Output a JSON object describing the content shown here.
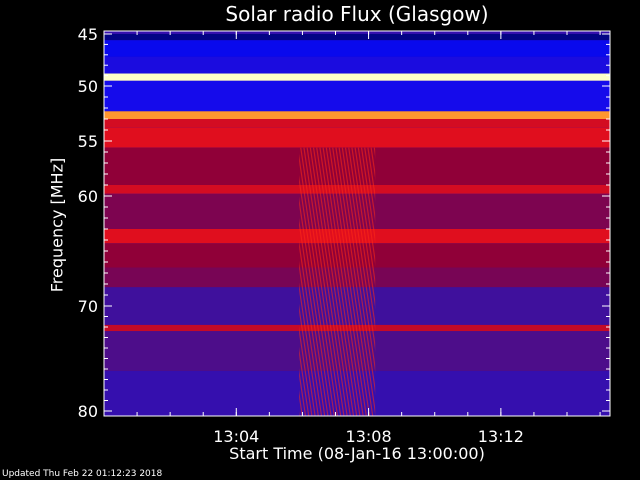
{
  "chart_data": {
    "type": "heatmap",
    "title": "Solar radio Flux (Glasgow)",
    "xlabel": "Start Time (08-Jan-16 13:00:00)",
    "ylabel": "Frequency [MHz]",
    "x_range_minutes": [
      0,
      15.3
    ],
    "y_range": [
      45,
      80
    ],
    "x_ticks": [
      {
        "label": "13:04",
        "minute": 4
      },
      {
        "label": "13:08",
        "minute": 8
      },
      {
        "label": "13:12",
        "minute": 12
      }
    ],
    "y_ticks": [
      {
        "label": "45",
        "value": 45
      },
      {
        "label": "50",
        "value": 50
      },
      {
        "label": "55",
        "value": 55
      },
      {
        "label": "60",
        "value": 60
      },
      {
        "label": "70",
        "value": 70
      },
      {
        "label": "80",
        "value": 80
      }
    ],
    "colormap": [
      "#000050",
      "#0a0aff",
      "#40109a",
      "#900038",
      "#ff1414",
      "#ff8c1e",
      "#ffffc8"
    ],
    "bands": [
      {
        "from": 45.0,
        "to": 45.6,
        "level": 0.05
      },
      {
        "from": 45.6,
        "to": 47.2,
        "level": 0.15
      },
      {
        "from": 47.2,
        "to": 48.8,
        "level": 0.22
      },
      {
        "from": 48.8,
        "to": 49.5,
        "level": 1.0
      },
      {
        "from": 49.5,
        "to": 52.3,
        "level": 0.2
      },
      {
        "from": 52.3,
        "to": 53.0,
        "level": 0.85
      },
      {
        "from": 53.0,
        "to": 53.8,
        "level": 0.6
      },
      {
        "from": 53.8,
        "to": 55.6,
        "level": 0.62
      },
      {
        "from": 55.6,
        "to": 59.0,
        "level": 0.5
      },
      {
        "from": 59.0,
        "to": 59.8,
        "level": 0.6
      },
      {
        "from": 59.8,
        "to": 63.0,
        "level": 0.46
      },
      {
        "from": 63.0,
        "to": 64.3,
        "level": 0.62
      },
      {
        "from": 64.3,
        "to": 66.5,
        "level": 0.5
      },
      {
        "from": 66.5,
        "to": 68.3,
        "level": 0.45
      },
      {
        "from": 68.3,
        "to": 71.8,
        "level": 0.33
      },
      {
        "from": 71.8,
        "to": 72.4,
        "level": 0.58
      },
      {
        "from": 72.4,
        "to": 76.2,
        "level": 0.36
      },
      {
        "from": 76.2,
        "to": 80.0,
        "level": 0.3
      }
    ],
    "burst": {
      "time_from": 5.9,
      "time_to": 8.2,
      "level": 0.6
    }
  },
  "footer": {
    "updated": "Updated Thu Feb 22 01:12:23 2018"
  }
}
